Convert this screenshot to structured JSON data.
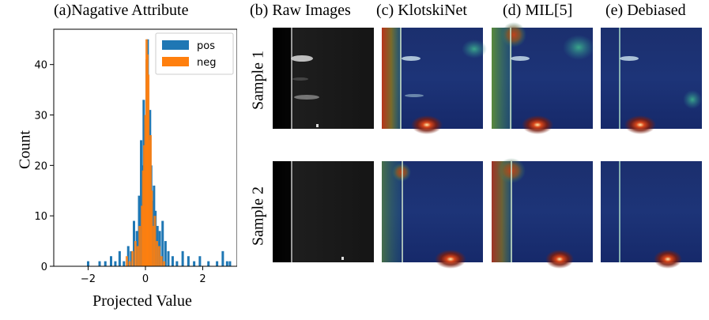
{
  "panels": {
    "a": "(a)Nagative Attribute",
    "b": "(b) Raw Images",
    "c": "(c) KlotskiNet",
    "d": "(d) MIL[5]",
    "e": "(e) Debiased"
  },
  "rows": [
    "Sample 1",
    "Sample 2"
  ],
  "chart_data": {
    "type": "bar",
    "title": "(a)Nagative Attribute",
    "xlabel": "Projected Value",
    "ylabel": "Count",
    "xlim": [
      -3.2,
      3.2
    ],
    "ylim": [
      0,
      47
    ],
    "xticks": [
      -2,
      0,
      2
    ],
    "yticks": [
      0,
      10,
      20,
      30,
      40
    ],
    "legend": "top-right",
    "grid": false,
    "series": [
      {
        "name": "pos",
        "color": "#1f77b4",
        "x": [
          -2.0,
          -1.6,
          -1.4,
          -1.2,
          -1.05,
          -0.9,
          -0.75,
          -0.6,
          -0.5,
          -0.4,
          -0.3,
          -0.22,
          -0.15,
          -0.1,
          -0.06,
          -0.02,
          0.02,
          0.05,
          0.08,
          0.12,
          0.16,
          0.2,
          0.25,
          0.3,
          0.35,
          0.42,
          0.5,
          0.6,
          0.7,
          0.8,
          0.95,
          1.1,
          1.3,
          1.5,
          1.7,
          1.9,
          2.2,
          2.5,
          2.7,
          2.85,
          2.95
        ],
        "y": [
          1,
          1,
          1,
          2,
          1,
          3,
          1,
          4,
          3,
          9,
          7,
          14,
          25,
          20,
          33,
          28,
          30,
          41,
          45,
          27,
          31,
          20,
          13,
          16,
          11,
          8,
          7,
          9,
          5,
          3,
          2,
          1,
          3,
          2,
          1,
          2,
          1,
          1,
          3,
          1,
          1
        ]
      },
      {
        "name": "neg",
        "color": "#ff7f0e",
        "x": [
          -0.65,
          -0.55,
          -0.45,
          -0.35,
          -0.27,
          -0.2,
          -0.12,
          -0.08,
          -0.04,
          0.0,
          0.04,
          0.07,
          0.1,
          0.14,
          0.18,
          0.22,
          0.28,
          0.33,
          0.4,
          0.48,
          0.56,
          0.65
        ],
        "y": [
          2,
          1,
          3,
          5,
          4,
          8,
          12,
          19,
          24,
          30,
          45,
          42,
          38,
          25,
          26,
          15,
          8,
          10,
          5,
          4,
          2,
          1
        ]
      }
    ]
  }
}
